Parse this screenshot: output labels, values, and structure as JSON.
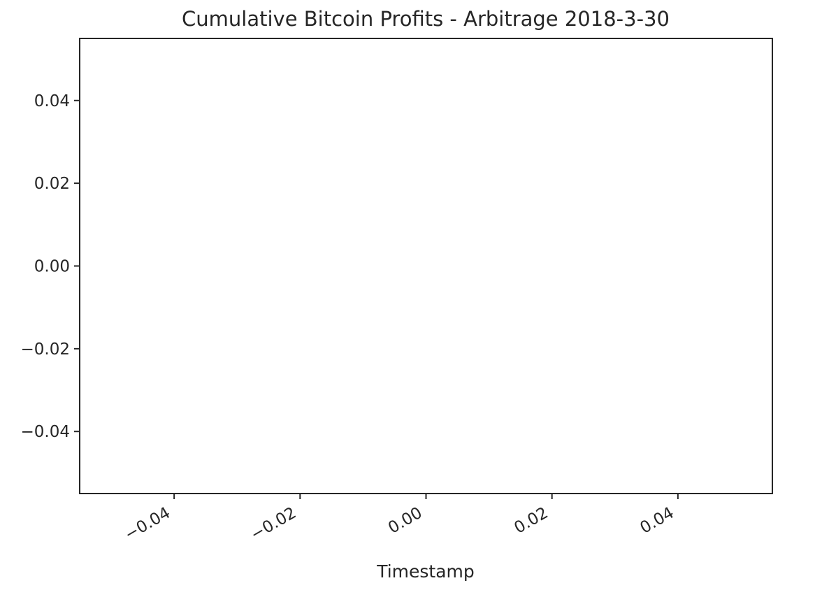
{
  "chart_data": {
    "type": "line",
    "title": "Cumulative Bitcoin Profits - Arbitrage 2018-3-30",
    "xlabel": "Timestamp",
    "ylabel": "",
    "xlim": [
      -0.055,
      0.055
    ],
    "ylim": [
      -0.055,
      0.055
    ],
    "x_ticks": [
      {
        "value": -0.04,
        "label": "−0.04"
      },
      {
        "value": -0.02,
        "label": "−0.02"
      },
      {
        "value": 0.0,
        "label": "0.00"
      },
      {
        "value": 0.02,
        "label": "0.02"
      },
      {
        "value": 0.04,
        "label": "0.04"
      }
    ],
    "y_ticks": [
      {
        "value": 0.04,
        "label": "0.04"
      },
      {
        "value": 0.02,
        "label": "0.02"
      },
      {
        "value": 0.0,
        "label": "0.00"
      },
      {
        "value": -0.02,
        "label": "−0.02"
      },
      {
        "value": -0.04,
        "label": "−0.04"
      }
    ],
    "x_tick_rotation_deg": 30,
    "grid": false,
    "legend": "none",
    "series": [
      {
        "x": [],
        "y": []
      }
    ],
    "colors": {
      "axis": "#262626",
      "text": "#262626",
      "background": "#ffffff"
    }
  }
}
